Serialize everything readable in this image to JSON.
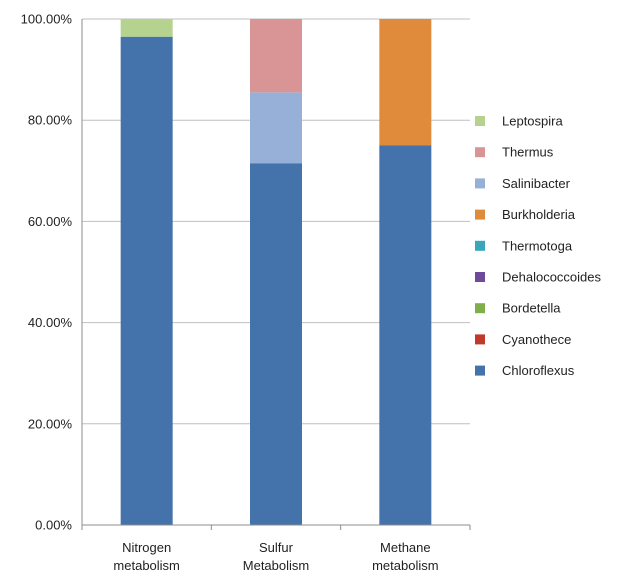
{
  "chart_data": {
    "type": "bar",
    "stacked": true,
    "categories": [
      [
        "Nitrogen",
        "metabolism"
      ],
      [
        "Sulfur",
        "Metabolism"
      ],
      [
        "Methane",
        "metabolism"
      ]
    ],
    "y_ticks": [
      "0.00%",
      "20.00%",
      "40.00%",
      "60.00%",
      "80.00%",
      "100.00%"
    ],
    "ylim": [
      0,
      100
    ],
    "grid": true,
    "legend_position": "right",
    "series": [
      {
        "name": "Chloroflexus",
        "color": "#4472AA",
        "values": [
          96.5,
          71.5,
          75.0
        ]
      },
      {
        "name": "Cyanothece",
        "color": "#C0392B",
        "values": [
          0,
          0,
          0
        ]
      },
      {
        "name": "Bordetella",
        "color": "#7FAE4A",
        "values": [
          0,
          0,
          0
        ]
      },
      {
        "name": "Dehalococcoides",
        "color": "#6E4A9A",
        "values": [
          0,
          0,
          0
        ]
      },
      {
        "name": "Thermotoga",
        "color": "#3AA6B9",
        "values": [
          0,
          0,
          0
        ]
      },
      {
        "name": "Burkholderia",
        "color": "#E08A3C",
        "values": [
          0,
          0,
          25.0
        ]
      },
      {
        "name": "Salinibacter",
        "color": "#97B0D8",
        "values": [
          0,
          14.0,
          0
        ]
      },
      {
        "name": "Thermus",
        "color": "#D99595",
        "values": [
          0,
          14.5,
          0
        ]
      },
      {
        "name": "Leptospira",
        "color": "#B5D38F",
        "values": [
          3.5,
          0,
          0
        ]
      }
    ]
  }
}
